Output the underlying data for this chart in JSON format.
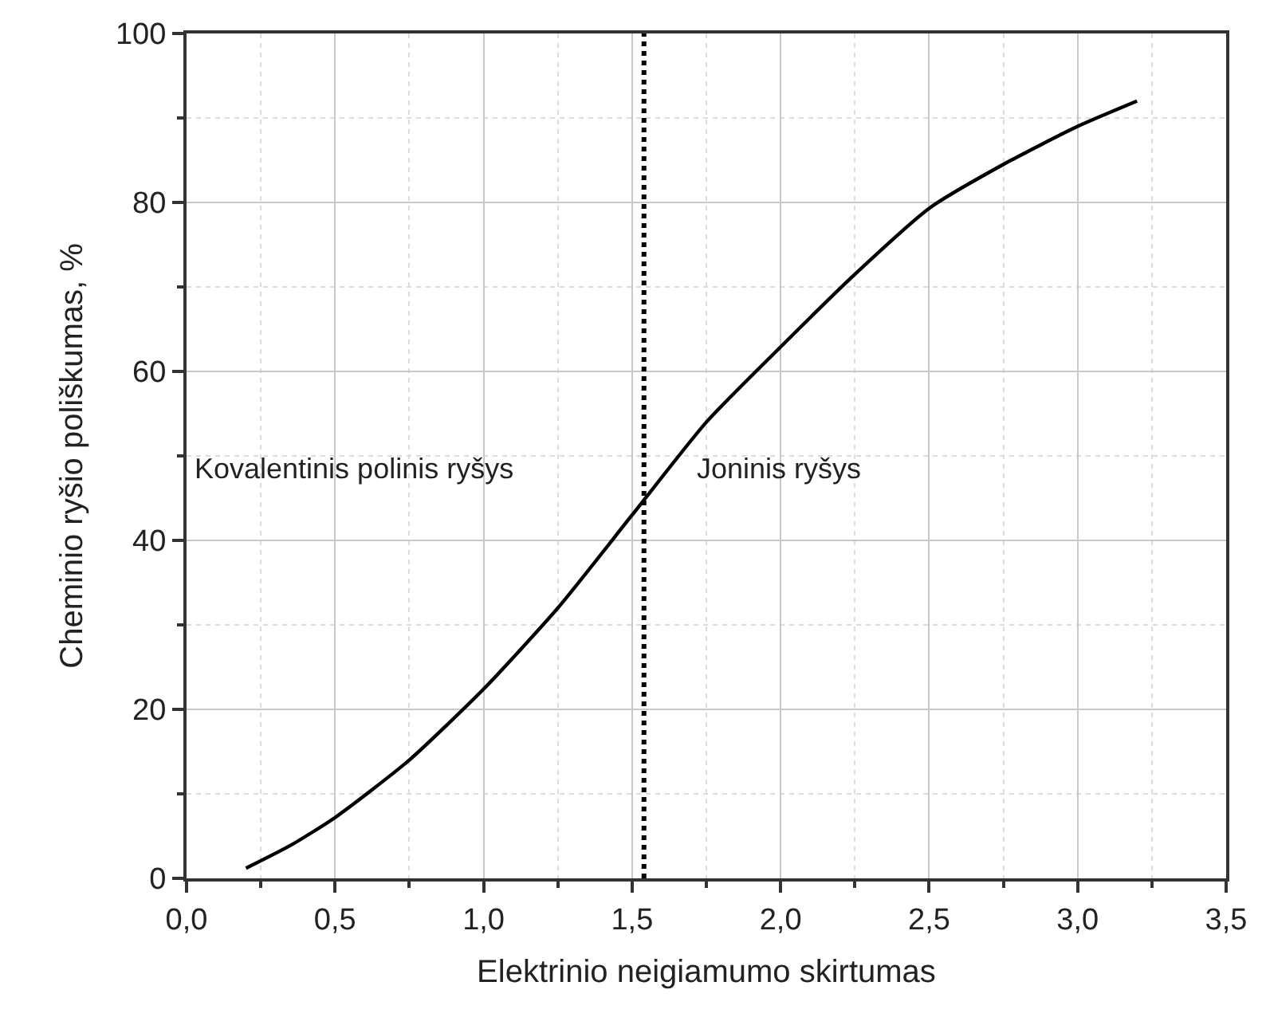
{
  "chart_data": {
    "type": "line",
    "xlabel": "Elektrinio neigiamumo skirtumas",
    "ylabel": "Cheminio ryšio poliškumas, %",
    "x": [
      0.2,
      0.35,
      0.5,
      0.75,
      1.0,
      1.25,
      1.5,
      1.75,
      2.0,
      2.25,
      2.5,
      2.75,
      3.0,
      3.2
    ],
    "series": [
      {
        "color": "#000000",
        "values": [
          1.2,
          3.9,
          7.2,
          14,
          22.4,
          32,
          43,
          54,
          62.9,
          71.5,
          79.3,
          84.5,
          89,
          92
        ]
      }
    ],
    "xlim": [
      0,
      3.5
    ],
    "ylim": [
      0,
      100
    ],
    "xticks": [
      {
        "value": 0,
        "label": "0,0"
      },
      {
        "value": 0.25,
        "label": null
      },
      {
        "value": 0.5,
        "label": "0,5"
      },
      {
        "value": 0.75,
        "label": null
      },
      {
        "value": 1,
        "label": "1,0"
      },
      {
        "value": 1.25,
        "label": null
      },
      {
        "value": 1.5,
        "label": "1,5"
      },
      {
        "value": 1.75,
        "label": null
      },
      {
        "value": 2,
        "label": "2,0"
      },
      {
        "value": 2.25,
        "label": null
      },
      {
        "value": 2.5,
        "label": "2,5"
      },
      {
        "value": 2.75,
        "label": null
      },
      {
        "value": 3,
        "label": "3,0"
      },
      {
        "value": 3.25,
        "label": null
      },
      {
        "value": 3.5,
        "label": "3,5"
      }
    ],
    "yticks": [
      0,
      {
        "value": 10,
        "label": null
      },
      20,
      {
        "value": 30,
        "label": null
      },
      40,
      {
        "value": 50,
        "label": null
      },
      60,
      {
        "value": 70,
        "label": null
      },
      80,
      {
        "value": 90,
        "label": null
      },
      100
    ],
    "ref_lines": [
      {
        "axis": "x",
        "value": 1.54,
        "color": "#000000",
        "line_style": "dotted"
      }
    ],
    "annotations": [
      "Kovalentinis polinis ryšys",
      "Joninis ryšys"
    ],
    "grid": true,
    "marker": "none",
    "line_style": "solid"
  }
}
